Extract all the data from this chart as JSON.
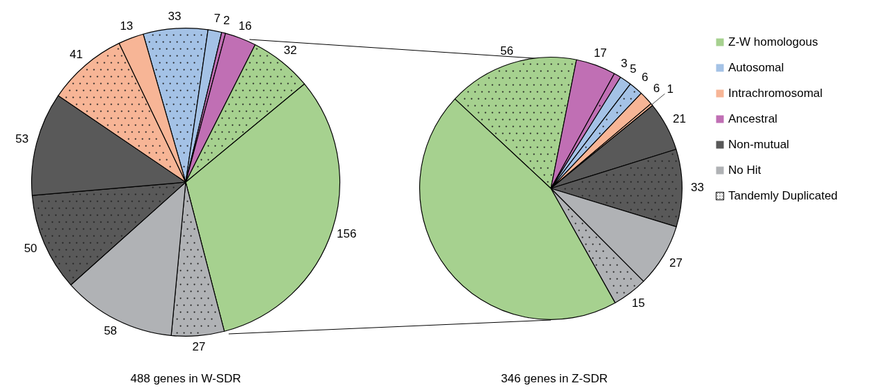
{
  "chart_data": [
    {
      "type": "pie",
      "title": "488 genes in W-SDR",
      "categories": [
        null,
        null,
        null,
        null,
        null,
        null,
        null,
        null,
        null,
        null,
        null,
        null
      ],
      "values": [
        33,
        7,
        2,
        16,
        32,
        156,
        27,
        58,
        50,
        53,
        41,
        13
      ],
      "colors": [
        "#a4c2e6",
        "#a4c2e6",
        "#c06fb4",
        "#c06fb4",
        "#a6d18f",
        "#a6d18f",
        "#b0b2b5",
        "#b0b2b5",
        "#595959",
        "#595959",
        "#f7b596",
        "#f7b596"
      ],
      "data_labels": true
    },
    {
      "type": "pie",
      "title": "346 genes in Z-SDR",
      "categories": [
        null,
        null,
        null,
        null,
        null,
        null,
        null,
        null,
        null,
        null,
        null,
        null
      ],
      "values": [
        56,
        17,
        3,
        5,
        6,
        6,
        1,
        21,
        33,
        27,
        15,
        156
      ],
      "colors": [
        "#a6d18f",
        "#c06fb4",
        "#c06fb4",
        "#a4c2e6",
        "#a4c2e6",
        "#f7b596",
        "#f7b596",
        "#595959",
        "#595959",
        "#b0b2b5",
        "#b0b2b5",
        "#a6d18f"
      ],
      "value_labels": [
        "56",
        "17",
        "3",
        "5",
        "6",
        "6",
        "1",
        "21",
        "33",
        "27",
        "15",
        null
      ]
    },
    {
      "type": "other",
      "categories": [
        "Z-W homologous",
        "Autosomal",
        "Intrachromosomal",
        "Ancestral",
        "Non-mutual",
        "No Hit",
        "Tandemly Duplicated"
      ],
      "colors": [
        "#a6d18f",
        "#a4c2e6",
        "#f7b596",
        "#c06fb4",
        "#595959",
        "#b0b2b5",
        "#ffffff"
      ]
    }
  ]
}
